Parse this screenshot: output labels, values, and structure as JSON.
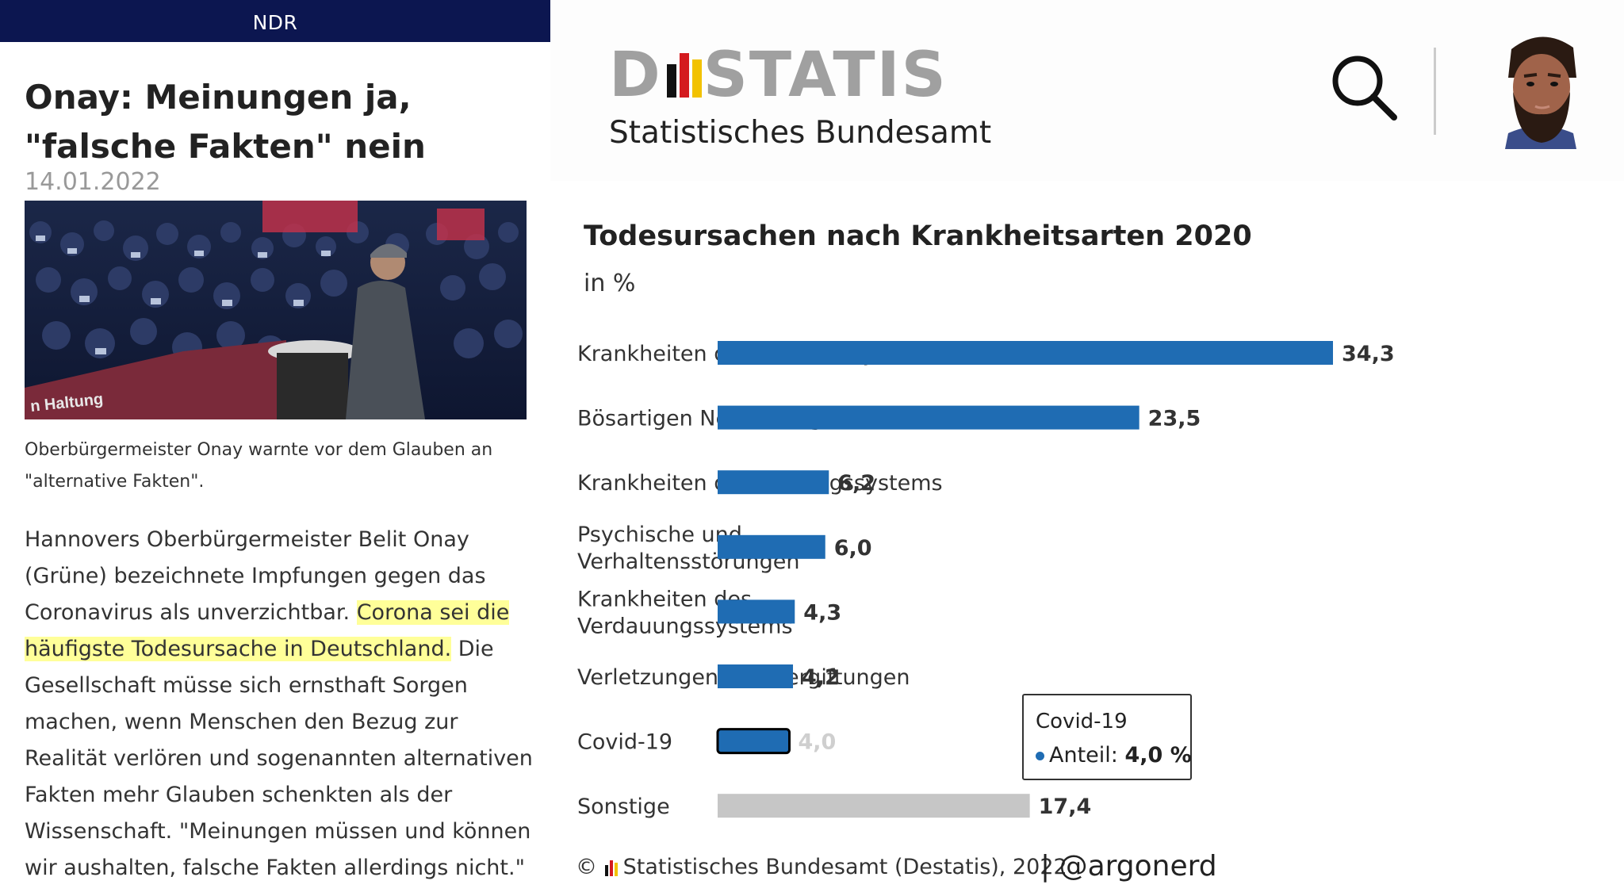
{
  "article": {
    "source": "NDR",
    "headline": "Onay: Meinungen ja, \"falsche Fakten\" nein",
    "date": "14.01.2022",
    "photo_text_banner": "n Haltung",
    "caption": "Oberbürgermeister Onay warnte vor dem Glauben an \"alternative Fakten\".",
    "body_before": "Hannovers Oberbürgermeister Belit Onay (Grüne) bezeichnete Impfungen gegen das Coronavirus als unverzichtbar. ",
    "body_highlight": "Corona sei die häufigste Todesursache in Deutschland.",
    "body_after": " Die Gesellschaft müsse sich ernsthaft Sorgen machen, wenn Menschen den Bezug zur Realität verlören und sogenannten alternativen Fakten mehr Glauben schenkten als der Wissenschaft. \"Meinungen müssen und können wir aushalten, falsche Fakten allerdings nicht.\""
  },
  "header": {
    "logo_text": "STATIS",
    "logo_sub": "Statistisches Bundesamt",
    "search_icon": "search-icon",
    "avatar_icon": "avatar-illustration"
  },
  "colors": {
    "bar": "#1f6cb3",
    "bar_other": "#c6c6c6",
    "ndr_bar": "#0c1650",
    "highlight": "#ffff99"
  },
  "chart_data": {
    "type": "bar",
    "orientation": "horizontal",
    "title": "Todesursachen nach Krankheitsarten 2020",
    "subtitle": "in %",
    "categories": [
      "Krankheiten des Kreislaufsystems",
      "Bösartigen Neubildungen (Krebs)",
      "Krankheiten des Atmungssystems",
      "Psychische und Verhaltensstörungen",
      "Krankheiten des Verdauungssystems",
      "Verletzungen und Vergiftungen",
      "Covid-19",
      "Sonstige"
    ],
    "label_lines": [
      [
        "Krankheiten des Kreislaufsystems"
      ],
      [
        "Bösartigen Neubildungen (Krebs)"
      ],
      [
        "Krankheiten des Atmungssystems"
      ],
      [
        "Psychische und",
        "Verhaltensstörungen"
      ],
      [
        "Krankheiten des",
        "Verdauungssystems"
      ],
      [
        "Verletzungen und Vergiftungen"
      ],
      [
        "Covid-19"
      ],
      [
        "Sonstige"
      ]
    ],
    "values": [
      34.3,
      23.5,
      6.2,
      6.0,
      4.3,
      4.2,
      4.0,
      17.4
    ],
    "value_labels": [
      "34,3",
      "23,5",
      "6,2",
      "6,0",
      "4,3",
      "4,2",
      "4,0",
      "17,4"
    ],
    "highlighted_category": "Covid-19",
    "gray_category": "Sonstige",
    "xlim": [
      0,
      34.3
    ],
    "unit": "%"
  },
  "tooltip": {
    "title": "Covid-19",
    "label": "Anteil:",
    "value": "4,0 %"
  },
  "footer": {
    "copyright": "©",
    "source": "Statistisches Bundesamt (Destatis), 2022",
    "credit": "| @argonerd"
  }
}
